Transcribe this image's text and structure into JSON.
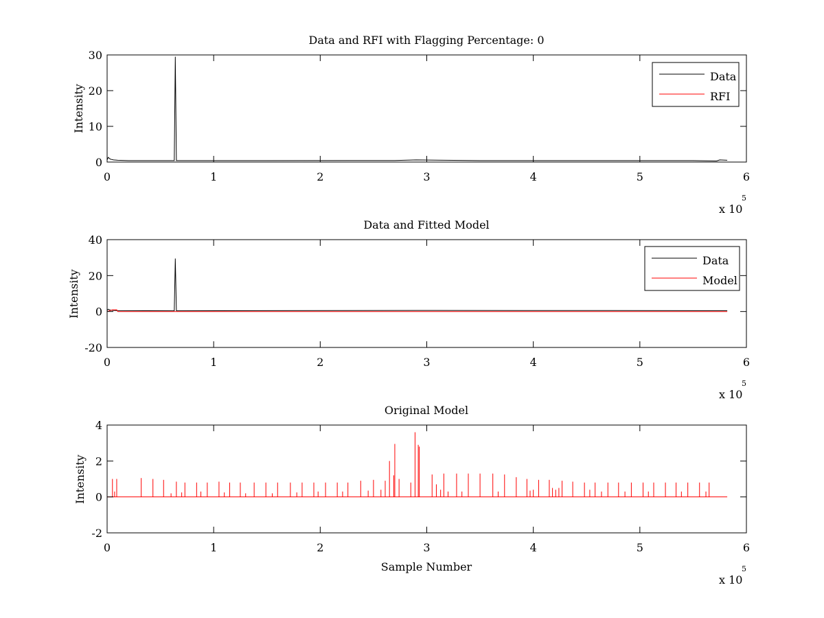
{
  "chart_data": [
    {
      "type": "line",
      "title": "Data and RFI with Flagging Percentage: 0",
      "xlabel": "",
      "ylabel": "Intensity",
      "xlim": [
        0,
        6
      ],
      "ylim": [
        0,
        30
      ],
      "xticks": [
        0,
        1,
        2,
        3,
        4,
        5,
        6
      ],
      "yticks": [
        0,
        10,
        20,
        30
      ],
      "x_multiplier": {
        "base": "x 10",
        "exponent": "5"
      },
      "legend": {
        "position": "top-right",
        "entries": [
          {
            "label": "Data",
            "color": "#000000"
          },
          {
            "label": "RFI",
            "color": "#ff0000"
          }
        ]
      },
      "series": [
        {
          "name": "Data",
          "color": "#000000",
          "x": [
            0,
            0.01,
            0.03,
            0.06,
            0.1,
            0.2,
            0.5,
            0.63,
            0.64,
            0.65,
            1.5,
            2.7,
            2.9,
            3.5,
            4.5,
            5.5,
            5.72,
            5.75,
            5.82
          ],
          "y": [
            0.6,
            1.3,
            0.8,
            0.6,
            0.5,
            0.4,
            0.4,
            0.4,
            29.5,
            0.4,
            0.4,
            0.45,
            0.6,
            0.4,
            0.4,
            0.4,
            0.3,
            0.6,
            0.5
          ]
        },
        {
          "name": "RFI",
          "color": "#ff0000",
          "x": [],
          "y": []
        }
      ]
    },
    {
      "type": "line",
      "title": "Data and Fitted Model",
      "xlabel": "",
      "ylabel": "Intensity",
      "xlim": [
        0,
        6
      ],
      "ylim": [
        -20,
        40
      ],
      "xticks": [
        0,
        1,
        2,
        3,
        4,
        5,
        6
      ],
      "yticks": [
        -20,
        0,
        20,
        40
      ],
      "x_multiplier": {
        "base": "x 10",
        "exponent": "5"
      },
      "legend": {
        "position": "top-right",
        "entries": [
          {
            "label": "Data",
            "color": "#000000"
          },
          {
            "label": "Model",
            "color": "#ff0000"
          }
        ]
      },
      "series": [
        {
          "name": "Data",
          "color": "#000000",
          "x": [
            0,
            0.01,
            0.03,
            0.06,
            0.1,
            0.63,
            0.64,
            0.65,
            2.9,
            5.82
          ],
          "y": [
            0.6,
            1.3,
            0.8,
            0.6,
            0.5,
            0.4,
            29.5,
            0.4,
            0.6,
            0.5
          ]
        },
        {
          "name": "Model",
          "color": "#ff0000",
          "x": [
            0,
            0.05,
            0.09,
            0.1,
            1.0,
            2.0,
            3.0,
            4.0,
            5.0,
            5.82
          ],
          "y": [
            0,
            0.9,
            1.0,
            0,
            0,
            0,
            0,
            0,
            0,
            0
          ]
        }
      ]
    },
    {
      "type": "line",
      "title": "Original Model",
      "xlabel": "Sample Number",
      "ylabel": "Intensity",
      "xlim": [
        0,
        6
      ],
      "ylim": [
        -2,
        4
      ],
      "xticks": [
        0,
        1,
        2,
        3,
        4,
        5,
        6
      ],
      "yticks": [
        -2,
        0,
        2,
        4
      ],
      "x_multiplier": {
        "base": "x 10",
        "exponent": "5"
      },
      "legend": null,
      "series": [
        {
          "name": "Model",
          "color": "#ff0000",
          "baseline_x": [
            0,
            5.82
          ],
          "baseline_y": [
            0,
            0
          ],
          "peaks_x": [
            0.05,
            0.07,
            0.09,
            0.32,
            0.43,
            0.53,
            0.65,
            0.73,
            0.84,
            0.94,
            1.05,
            1.15,
            1.25,
            1.38,
            1.49,
            1.6,
            1.72,
            1.83,
            1.94,
            2.05,
            2.16,
            2.26,
            2.38,
            2.5,
            2.61,
            2.65,
            2.69,
            2.7,
            2.74,
            2.85,
            2.89,
            2.92,
            2.93,
            3.05,
            3.09,
            3.16,
            3.28,
            3.39,
            3.5,
            3.62,
            3.73,
            3.84,
            3.94,
            4.05,
            4.15,
            4.27,
            4.37,
            4.48,
            4.58,
            4.7,
            4.8,
            4.92,
            5.03,
            5.13,
            5.24,
            5.34,
            5.45,
            5.56,
            5.65
          ],
          "peaks_y": [
            1.0,
            0.3,
            1.0,
            1.05,
            1.0,
            0.95,
            0.85,
            0.8,
            0.8,
            0.8,
            0.85,
            0.8,
            0.8,
            0.8,
            0.8,
            0.8,
            0.8,
            0.8,
            0.8,
            0.8,
            0.8,
            0.8,
            0.9,
            0.95,
            0.9,
            2.0,
            1.2,
            2.95,
            1.0,
            0.8,
            3.6,
            2.9,
            2.8,
            1.25,
            0.7,
            1.3,
            1.3,
            1.3,
            1.3,
            1.3,
            1.25,
            1.1,
            1.0,
            0.95,
            0.95,
            0.9,
            0.85,
            0.8,
            0.8,
            0.8,
            0.8,
            0.8,
            0.8,
            0.8,
            0.8,
            0.8,
            0.8,
            0.8,
            0.8
          ],
          "minor_peaks_x": [
            0.6,
            0.7,
            0.88,
            1.1,
            1.3,
            1.55,
            1.78,
            1.98,
            2.21,
            2.45,
            2.57,
            3.13,
            3.2,
            3.33,
            3.67,
            3.97,
            4.0,
            4.18,
            4.21,
            4.24,
            4.53,
            4.64,
            4.86,
            5.08,
            5.39,
            5.62
          ],
          "minor_peaks_y": [
            0.2,
            0.25,
            0.3,
            0.25,
            0.2,
            0.2,
            0.25,
            0.3,
            0.3,
            0.35,
            0.4,
            0.4,
            0.3,
            0.3,
            0.3,
            0.35,
            0.4,
            0.5,
            0.4,
            0.5,
            0.4,
            0.3,
            0.3,
            0.3,
            0.3,
            0.3
          ]
        }
      ]
    }
  ]
}
